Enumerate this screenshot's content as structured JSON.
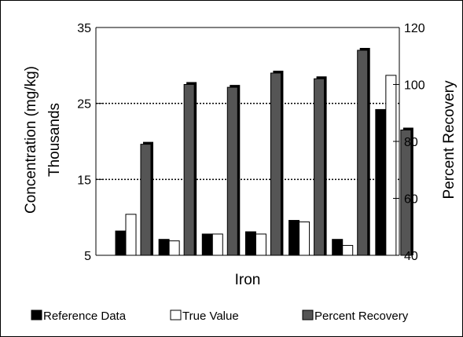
{
  "chart_data": {
    "type": "bar",
    "xlabel": "Iron",
    "ylabel_left_line1": "Concentration (mg/kg)",
    "ylabel_left_line2": "Thousands",
    "ylabel_right": "Percent Recovery",
    "ylim_left": [
      5,
      35
    ],
    "ylim_right": [
      40,
      120
    ],
    "left_ticks": [
      "5",
      "15",
      "25",
      "35"
    ],
    "right_ticks": [
      "40",
      "60",
      "80",
      "100",
      "120"
    ],
    "gridlines_left": [
      15,
      25
    ],
    "categories": [
      "",
      "",
      "",
      "",
      "",
      "",
      ""
    ],
    "series": [
      {
        "name": "Reference Data",
        "axis": "left",
        "color": "#000000",
        "values": [
          8.2,
          7.1,
          7.8,
          8.1,
          9.6,
          7.1,
          24.2
        ]
      },
      {
        "name": "True Value",
        "axis": "left",
        "color": "#ffffff",
        "values": [
          10.4,
          6.9,
          7.8,
          7.8,
          9.4,
          6.3,
          28.7
        ]
      },
      {
        "name": "Percent Recovery",
        "axis": "right",
        "color": "#555555",
        "values": [
          79,
          100,
          99,
          104,
          102,
          112,
          84
        ]
      }
    ],
    "legend_position": "bottom"
  }
}
